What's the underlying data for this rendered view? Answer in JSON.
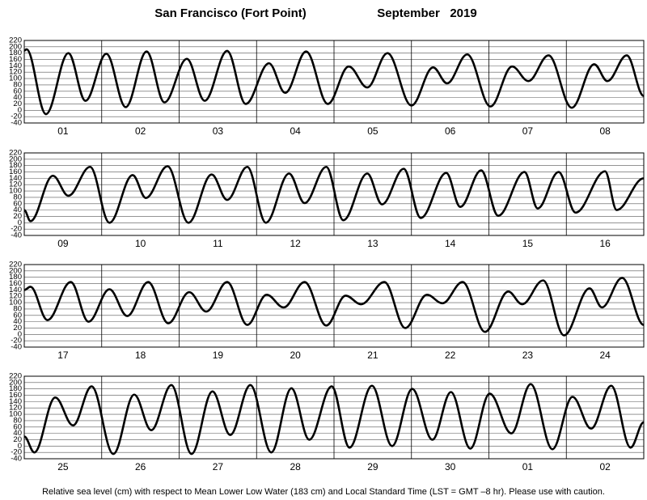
{
  "title": "San Francisco (Fort Point)",
  "period": "September   2019",
  "footnote": "Relative sea level (cm) with respect to Mean Lower Low Water (183 cm) and Local Standard Time (LST = GMT –8 hr). Please use with caution.",
  "chart_data": [
    {
      "type": "line",
      "categories": [
        "01",
        "02",
        "03",
        "04",
        "05",
        "06",
        "07",
        "08"
      ],
      "x": [
        0,
        0.03,
        0.28,
        0.57,
        0.79,
        1.06,
        1.31,
        1.58,
        1.81,
        2.1,
        2.33,
        2.62,
        2.86,
        3.16,
        3.37,
        3.64,
        3.92,
        4.19,
        4.43,
        4.69,
        5.0,
        5.28,
        5.46,
        5.72,
        6.02,
        6.3,
        6.51,
        6.77,
        7.07,
        7.36,
        7.53,
        7.78,
        8.0
      ],
      "series": [
        {
          "color": "#000000",
          "values": [
            188,
            192,
            -12,
            180,
            30,
            178,
            10,
            185,
            25,
            162,
            30,
            187,
            20,
            148,
            55,
            185,
            20,
            138,
            72,
            180,
            15,
            135,
            85,
            176,
            12,
            138,
            92,
            173,
            8,
            145,
            92,
            173,
            45
          ]
        }
      ],
      "xlim": [
        0,
        8
      ],
      "xticks": [
        1,
        2,
        3,
        4,
        5,
        6,
        7
      ],
      "ylim": [
        -40,
        220
      ],
      "yticks": [
        -40,
        -20,
        0,
        20,
        40,
        60,
        80,
        100,
        120,
        140,
        160,
        180,
        200,
        220
      ],
      "grid": true
    },
    {
      "type": "line",
      "categories": [
        "09",
        "10",
        "11",
        "12",
        "13",
        "14",
        "15",
        "16"
      ],
      "x": [
        0,
        0.08,
        0.37,
        0.57,
        0.85,
        1.1,
        1.4,
        1.57,
        1.85,
        2.12,
        2.42,
        2.62,
        2.88,
        3.12,
        3.42,
        3.62,
        3.9,
        4.12,
        4.43,
        4.62,
        4.9,
        5.12,
        5.45,
        5.63,
        5.9,
        6.12,
        6.46,
        6.63,
        6.9,
        7.12,
        7.5,
        7.65,
        8.0
      ],
      "series": [
        {
          "color": "#000000",
          "values": [
            40,
            5,
            148,
            85,
            176,
            0,
            150,
            78,
            178,
            0,
            152,
            72,
            176,
            0,
            155,
            62,
            176,
            8,
            155,
            58,
            170,
            15,
            157,
            50,
            165,
            22,
            160,
            45,
            160,
            32,
            162,
            40,
            140
          ]
        }
      ],
      "xlim": [
        0,
        8
      ],
      "xticks": [
        1,
        2,
        3,
        4,
        5,
        6,
        7
      ],
      "ylim": [
        -40,
        220
      ],
      "yticks": [
        -40,
        -20,
        0,
        20,
        40,
        60,
        80,
        100,
        120,
        140,
        160,
        180,
        200,
        220
      ],
      "grid": true
    },
    {
      "type": "line",
      "categories": [
        "17",
        "18",
        "19",
        "20",
        "21",
        "22",
        "23",
        "24"
      ],
      "x": [
        0,
        0.08,
        0.3,
        0.6,
        0.83,
        1.1,
        1.33,
        1.6,
        1.86,
        2.13,
        2.35,
        2.62,
        2.88,
        3.13,
        3.35,
        3.62,
        3.9,
        4.15,
        4.35,
        4.65,
        4.92,
        5.2,
        5.4,
        5.66,
        5.95,
        6.25,
        6.43,
        6.7,
        6.97,
        7.3,
        7.46,
        7.72,
        8.0
      ],
      "series": [
        {
          "color": "#000000",
          "values": [
            140,
            150,
            45,
            165,
            40,
            142,
            58,
            165,
            35,
            133,
            72,
            165,
            30,
            125,
            85,
            165,
            28,
            122,
            95,
            165,
            20,
            125,
            98,
            165,
            8,
            135,
            95,
            170,
            -3,
            145,
            85,
            178,
            30
          ]
        }
      ],
      "xlim": [
        0,
        8
      ],
      "xticks": [
        1,
        2,
        3,
        4,
        5,
        6,
        7
      ],
      "ylim": [
        -40,
        220
      ],
      "yticks": [
        -40,
        -20,
        0,
        20,
        40,
        60,
        80,
        100,
        120,
        140,
        160,
        180,
        200,
        220
      ],
      "grid": true
    },
    {
      "type": "line",
      "categories": [
        "25",
        "26",
        "27",
        "28",
        "29",
        "30",
        "01",
        "02"
      ],
      "x": [
        0,
        0.13,
        0.4,
        0.63,
        0.87,
        1.15,
        1.42,
        1.64,
        1.9,
        2.16,
        2.43,
        2.66,
        2.92,
        3.19,
        3.45,
        3.68,
        3.97,
        4.2,
        4.49,
        4.75,
        5.01,
        5.27,
        5.51,
        5.76,
        6.01,
        6.29,
        6.54,
        6.82,
        7.08,
        7.32,
        7.58,
        7.83,
        8.0
      ],
      "series": [
        {
          "color": "#000000",
          "values": [
            30,
            -20,
            153,
            65,
            188,
            -25,
            162,
            50,
            192,
            -25,
            172,
            35,
            192,
            -20,
            182,
            20,
            188,
            -5,
            190,
            0,
            180,
            20,
            170,
            -8,
            165,
            40,
            195,
            -10,
            155,
            55,
            190,
            -5,
            75
          ]
        }
      ],
      "xlim": [
        0,
        8
      ],
      "xticks": [
        1,
        2,
        3,
        4,
        5,
        6,
        7
      ],
      "ylim": [
        -40,
        220
      ],
      "yticks": [
        -40,
        -20,
        0,
        20,
        40,
        60,
        80,
        100,
        120,
        140,
        160,
        180,
        200,
        220
      ],
      "grid": true
    }
  ]
}
